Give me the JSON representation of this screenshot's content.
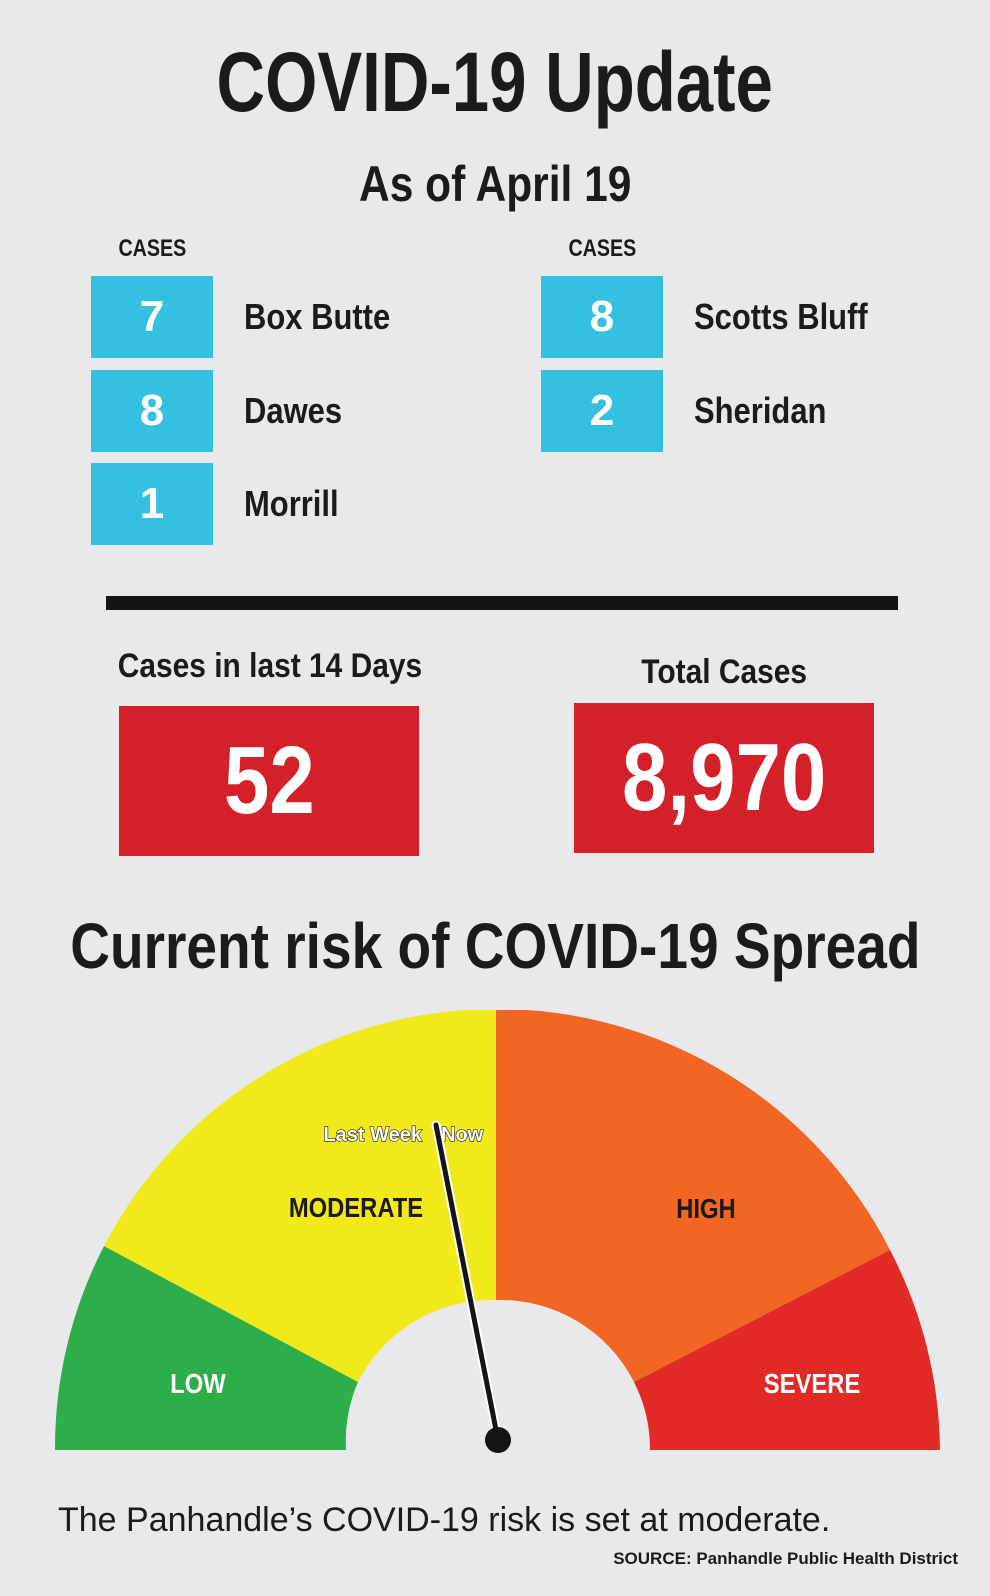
{
  "header": {
    "title": "COVID-19 Update",
    "subtitle": "As of April 19"
  },
  "counties": {
    "left_header": "CASES",
    "right_header": "CASES",
    "left": [
      {
        "cases": "7",
        "name": "Box Butte"
      },
      {
        "cases": "8",
        "name": "Dawes"
      },
      {
        "cases": "1",
        "name": "Morrill"
      }
    ],
    "right": [
      {
        "cases": "8",
        "name": "Scotts Bluff"
      },
      {
        "cases": "2",
        "name": "Sheridan"
      }
    ]
  },
  "stats": {
    "recent_label": "Cases in last 14 Days",
    "recent_value": "52",
    "total_label": "Total Cases",
    "total_value": "8,970"
  },
  "risk": {
    "title": "Current risk of COVID-19 Spread",
    "zones": {
      "low": "LOW",
      "moderate": "MODERATE",
      "high": "HIGH",
      "severe": "SEVERE"
    },
    "markers": {
      "last_week": "Last Week",
      "now": "Now"
    },
    "current_level": "MODERATE",
    "caption": "The Panhandle’s COVID-19 risk is set at moderate."
  },
  "source": "SOURCE: Panhandle Public Health District",
  "colors": {
    "county_box": "#34c0e1",
    "stat_box": "#d42028",
    "low": "#2eae4a",
    "moderate": "#f2e91b",
    "high": "#f26522",
    "severe": "#e22a27"
  }
}
